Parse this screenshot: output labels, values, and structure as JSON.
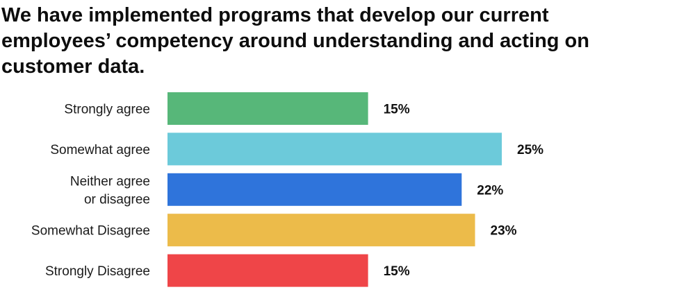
{
  "chart_data": {
    "type": "bar",
    "orientation": "horizontal",
    "title": "We have implemented programs that develop our current\nemployees’ competency around understanding and acting on\ncustomer data.",
    "categories": [
      "Strongly agree",
      "Somewhat agree",
      "Neither agree\nor disagree",
      "Somewhat Disagree",
      "Strongly Disagree"
    ],
    "values": [
      15,
      25,
      22,
      23,
      15
    ],
    "value_labels": [
      "15%",
      "25%",
      "22%",
      "23%",
      "15%"
    ],
    "unit": "%",
    "colors": [
      "#57b779",
      "#6ccada",
      "#2f74db",
      "#ecbb4a",
      "#ef4548"
    ],
    "xlim": [
      0,
      25
    ],
    "grid": false,
    "legend": "none"
  }
}
